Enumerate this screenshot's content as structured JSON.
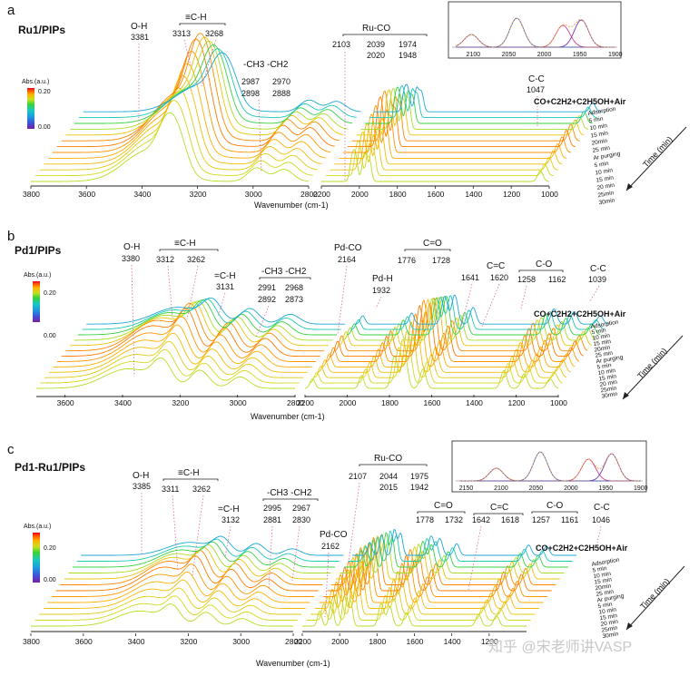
{
  "figure": {
    "watermark": "知乎 @宋老师讲VASP",
    "time_axis_label": "Time (min)",
    "legend_title": "Abs.(a.u.)",
    "legend_ticks": [
      "0.20",
      "0.00"
    ],
    "colorscale": [
      "#7a1fa2",
      "#3f51d8",
      "#1e9be0",
      "#19c8c0",
      "#39d23a",
      "#c8e020",
      "#ffb200",
      "#ff5a00",
      "#e8001c"
    ]
  },
  "chart_data": [
    {
      "panel": "a",
      "type": "line",
      "title": "Ru1/PIPs",
      "xlabel": "Wavenumber (cm-1)",
      "ylabel": "Abs.(a.u.)",
      "xlim": [
        3800,
        1000
      ],
      "x_ticks": [
        "3800",
        "3600",
        "3400",
        "3200",
        "3000",
        "2800",
        "2200",
        "2000",
        "1800",
        "1600",
        "1400",
        "1200",
        "1000"
      ],
      "gas_label": "CO+C2H2+C2H5OH+Air",
      "time_labels": [
        "Adsorption",
        "5 min",
        "10 min",
        "15 min",
        "20min",
        "25 min",
        "Ar purging",
        "5 min",
        "10 min",
        "15 min",
        "20 min",
        "25min",
        "30min"
      ],
      "annotations": [
        {
          "label": "O-H",
          "values": [
            "3381"
          ]
        },
        {
          "label": "≡C-H",
          "values": [
            "3313",
            "3268"
          ]
        },
        {
          "label": "-CH3 -CH2",
          "values": [
            "2987",
            "2970",
            "2898",
            "2888"
          ]
        },
        {
          "label": "Ru-CO",
          "values": [
            "2103",
            "2039",
            "1974",
            "2020",
            "1948"
          ]
        },
        {
          "label": "C-C",
          "values": [
            "1047"
          ]
        }
      ],
      "peaks": [
        {
          "x": 3381,
          "height": 0.2
        },
        {
          "x": 3313,
          "height": 0.22
        },
        {
          "x": 3268,
          "height": 0.21
        },
        {
          "x": 2987,
          "height": 0.09
        },
        {
          "x": 2888,
          "height": 0.08
        },
        {
          "x": 2039,
          "height": 0.14
        },
        {
          "x": 2020,
          "height": 0.16
        },
        {
          "x": 1974,
          "height": 0.18
        },
        {
          "x": 1948,
          "height": 0.15
        },
        {
          "x": 1047,
          "height": 0.07
        }
      ],
      "inset": {
        "x_ticks": [
          "2100",
          "2050",
          "2000",
          "1950",
          "1900"
        ],
        "peaks": [
          2103,
          2039,
          1974,
          1948
        ]
      }
    },
    {
      "panel": "b",
      "type": "line",
      "title": "Pd1/PIPs",
      "xlabel": "Wavenumber (cm-1)",
      "ylabel": "Abs.(a.u.)",
      "xlim": [
        3700,
        1000
      ],
      "x_ticks": [
        "3600",
        "3400",
        "3200",
        "3000",
        "2800",
        "2200",
        "2000",
        "1800",
        "1600",
        "1400",
        "1200",
        "1000"
      ],
      "gas_label": "CO+C2H2+C2H5OH+Air",
      "time_labels": [
        "Adsorption",
        "5 min",
        "10 min",
        "15 min",
        "20min",
        "25 min",
        "Ar purging",
        "5 min",
        "10 min",
        "15 min",
        "20 min",
        "25min",
        "30min"
      ],
      "annotations": [
        {
          "label": "O-H",
          "values": [
            "3380"
          ]
        },
        {
          "label": "≡C-H",
          "values": [
            "3312",
            "3262"
          ]
        },
        {
          "label": "=C-H",
          "values": [
            "3131"
          ]
        },
        {
          "label": "-CH3 -CH2",
          "values": [
            "2991",
            "2968",
            "2892",
            "2873"
          ]
        },
        {
          "label": "Pd-CO",
          "values": [
            "2164"
          ]
        },
        {
          "label": "Pd-H",
          "values": [
            "1932"
          ]
        },
        {
          "label": "C=O",
          "values": [
            "1776",
            "1728"
          ]
        },
        {
          "label": "C=C",
          "values": [
            "1641",
            "1620"
          ]
        },
        {
          "label": "C-O",
          "values": [
            "1258",
            "1162"
          ]
        },
        {
          "label": "C-C",
          "values": [
            "1039"
          ]
        }
      ],
      "peaks": [
        {
          "x": 3380,
          "height": 0.12
        },
        {
          "x": 3262,
          "height": 0.14
        },
        {
          "x": 3131,
          "height": 0.11
        },
        {
          "x": 2991,
          "height": 0.07
        },
        {
          "x": 2164,
          "height": 0.06
        },
        {
          "x": 1932,
          "height": 0.08
        },
        {
          "x": 1776,
          "height": 0.2
        },
        {
          "x": 1728,
          "height": 0.21
        },
        {
          "x": 1641,
          "height": 0.12
        },
        {
          "x": 1258,
          "height": 0.11
        },
        {
          "x": 1162,
          "height": 0.09
        },
        {
          "x": 1039,
          "height": 0.06
        }
      ]
    },
    {
      "panel": "c",
      "type": "line",
      "title": "Pd1-Ru1/PIPs",
      "xlabel": "Wavenumber (cm-1)",
      "ylabel": "Abs.(a.u.)",
      "xlim": [
        3800,
        1000
      ],
      "x_ticks": [
        "3800",
        "3600",
        "3400",
        "3200",
        "3000",
        "2800",
        "2200",
        "2000",
        "1800",
        "1600",
        "1400",
        "1200"
      ],
      "gas_label": "CO+C2H2+C2H5OH+Air",
      "time_labels": [
        "Adsorption",
        "5 min",
        "10 min",
        "15 min",
        "20min",
        "25 min",
        "Ar purging",
        "5 min",
        "10 min",
        "15 min",
        "20 min",
        "25min",
        "30min"
      ],
      "annotations": [
        {
          "label": "O-H",
          "values": [
            "3385"
          ]
        },
        {
          "label": "≡C-H",
          "values": [
            "3311",
            "3262"
          ]
        },
        {
          "label": "=C-H",
          "values": [
            "3132"
          ]
        },
        {
          "label": "-CH3 -CH2",
          "values": [
            "2995",
            "2967",
            "2881",
            "2830"
          ]
        },
        {
          "label": "Ru-CO",
          "values": [
            "2107",
            "2044",
            "1975",
            "2015",
            "1942"
          ]
        },
        {
          "label": "Pd-CO",
          "values": [
            "2162"
          ]
        },
        {
          "label": "C=O",
          "values": [
            "1778",
            "1732"
          ]
        },
        {
          "label": "C=C",
          "values": [
            "1642",
            "1618"
          ]
        },
        {
          "label": "C-O",
          "values": [
            "1257",
            "1161"
          ]
        },
        {
          "label": "C-C",
          "values": [
            "1046"
          ]
        }
      ],
      "peaks": [
        {
          "x": 3385,
          "height": 0.1
        },
        {
          "x": 3262,
          "height": 0.11
        },
        {
          "x": 3132,
          "height": 0.09
        },
        {
          "x": 2995,
          "height": 0.05
        },
        {
          "x": 2107,
          "height": 0.1
        },
        {
          "x": 2044,
          "height": 0.16
        },
        {
          "x": 1975,
          "height": 0.2
        },
        {
          "x": 1942,
          "height": 0.17
        },
        {
          "x": 1778,
          "height": 0.15
        },
        {
          "x": 1732,
          "height": 0.13
        },
        {
          "x": 1642,
          "height": 0.09
        },
        {
          "x": 1257,
          "height": 0.08
        },
        {
          "x": 1161,
          "height": 0.07
        }
      ],
      "inset": {
        "x_ticks": [
          "2150",
          "2100",
          "2050",
          "2000",
          "1950",
          "1900"
        ],
        "peaks": [
          2107,
          2044,
          1975,
          1942
        ]
      }
    }
  ]
}
